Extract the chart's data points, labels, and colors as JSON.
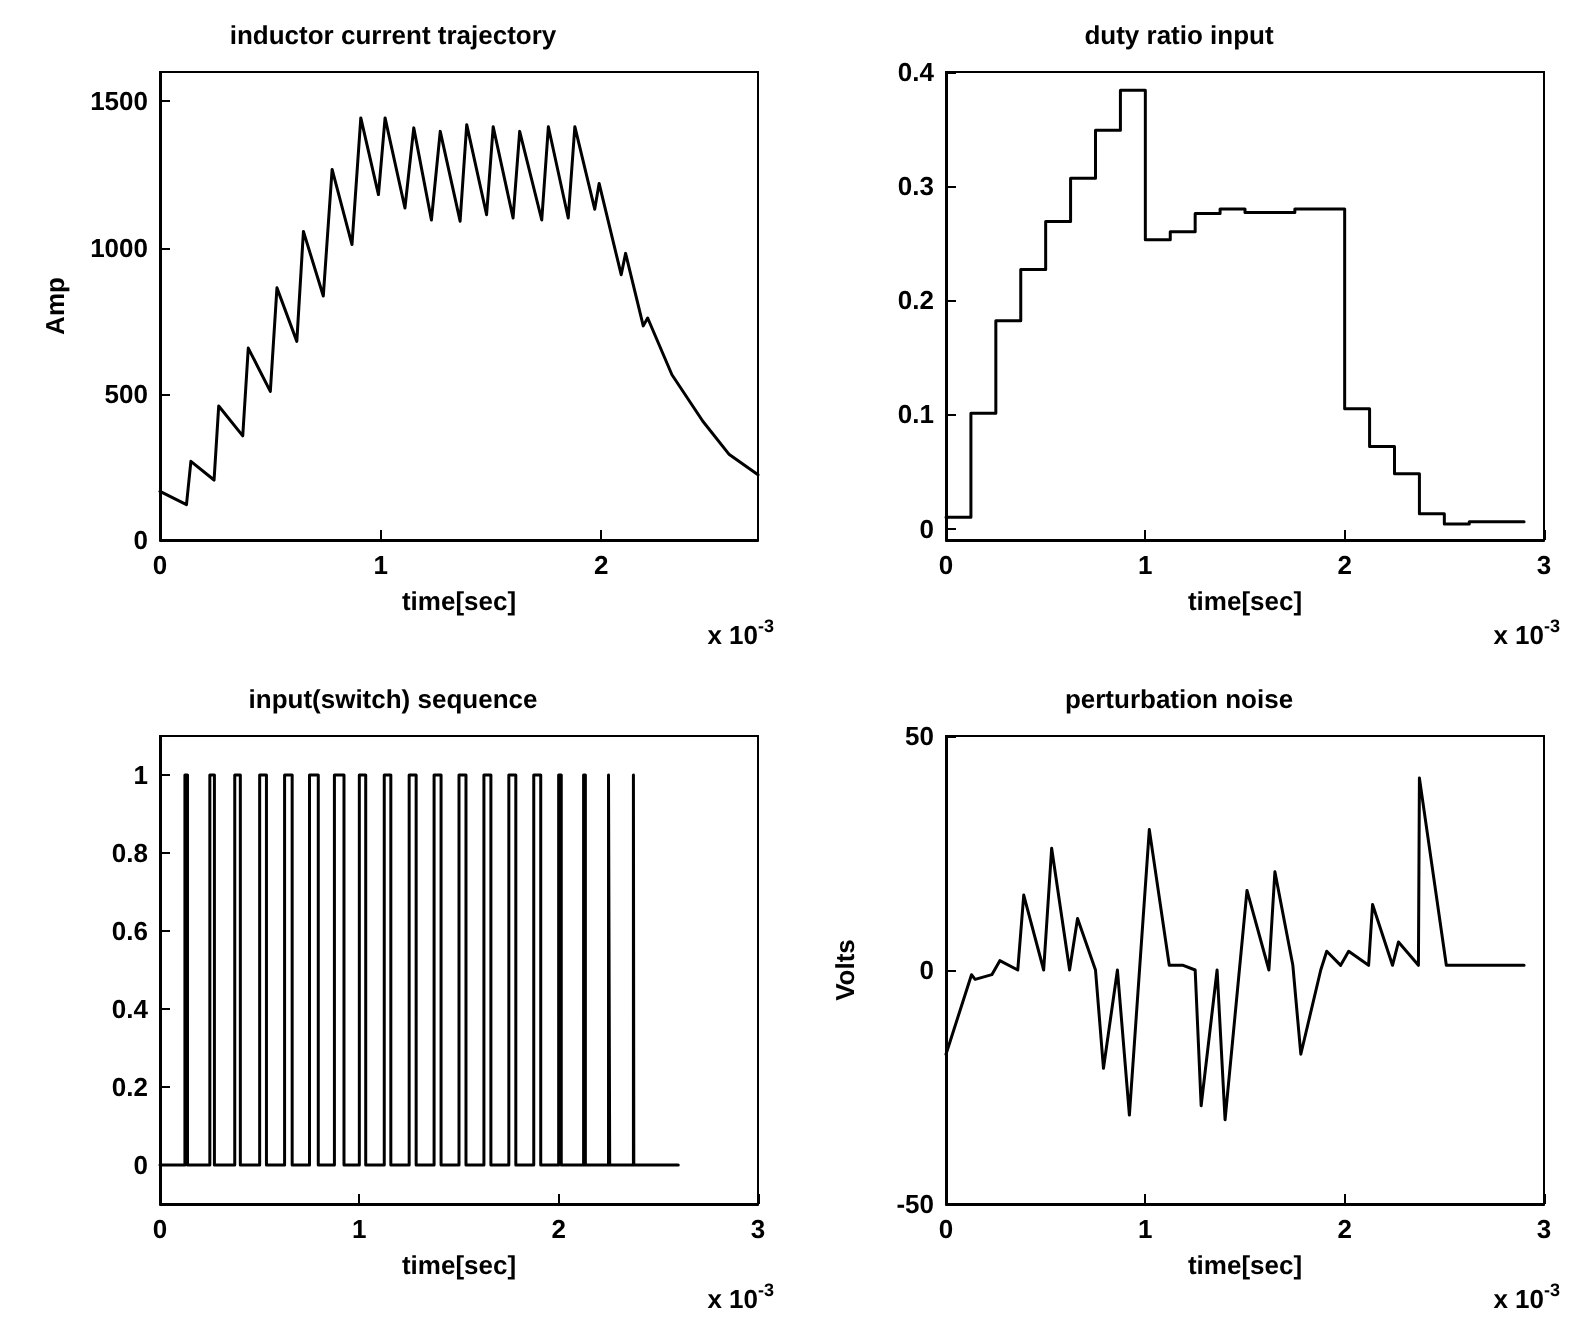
{
  "chart_data": [
    {
      "type": "line",
      "title": "inductor current trajectory",
      "xlabel": "time[sec]",
      "ylabel": "Amp",
      "annotations": [
        "x 10$^{-3}$"
      ],
      "xlim": [
        0,
        2.71
      ],
      "xticks": [
        0,
        1,
        2
      ],
      "ylim": [
        0,
        1600
      ],
      "yticks": [
        0,
        500,
        1000,
        1500
      ],
      "grid": false,
      "series": [
        {
          "color": "#000000",
          "x": [
            0,
            0.12,
            0.14,
            0.245,
            0.266,
            0.375,
            0.4,
            0.5,
            0.53,
            0.62,
            0.65,
            0.74,
            0.78,
            0.87,
            0.91,
            0.99,
            1.02,
            1.11,
            1.15,
            1.23,
            1.27,
            1.36,
            1.39,
            1.48,
            1.51,
            1.6,
            1.63,
            1.73,
            1.76,
            1.85,
            1.88,
            1.97,
            1.99,
            2.09,
            2.11,
            2.19,
            2.21,
            2.32,
            2.46,
            2.58,
            2.71
          ],
          "values": [
            166,
            121,
            269,
            205,
            458,
            356,
            656,
            508,
            862,
            679,
            1055,
            834,
            1267,
            1010,
            1443,
            1181,
            1443,
            1135,
            1409,
            1094,
            1397,
            1090,
            1420,
            1112,
            1413,
            1101,
            1397,
            1094,
            1413,
            1101,
            1413,
            1131,
            1219,
            907,
            980,
            732,
            759,
            565,
            406,
            292,
            223
          ]
        }
      ]
    },
    {
      "type": "step",
      "title": "duty ratio input",
      "xlabel": "time[sec]",
      "annotations": [
        "x 10$^{-3}$"
      ],
      "xlim": [
        0,
        3
      ],
      "xticks": [
        0,
        1,
        2,
        3
      ],
      "ylim": [
        -0.01,
        0.4
      ],
      "yticks": [
        0,
        0.1,
        0.2,
        0.3,
        0.4
      ],
      "grid": false,
      "series": [
        {
          "color": "#000000",
          "x": [
            0,
            0.125,
            0.25,
            0.375,
            0.5,
            0.625,
            0.75,
            0.875,
            1,
            1.125,
            1.25,
            1.375,
            1.5,
            1.625,
            1.75,
            1.875,
            2,
            2.125,
            2.25,
            2.375,
            2.5,
            2.625,
            2.9
          ],
          "values": [
            0.01,
            0.101,
            0.182,
            0.227,
            0.269,
            0.307,
            0.349,
            0.384,
            0.253,
            0.26,
            0.276,
            0.28,
            0.277,
            0.277,
            0.28,
            0.28,
            0.105,
            0.072,
            0.048,
            0.013,
            0.004,
            0.006,
            0.006
          ]
        }
      ]
    },
    {
      "type": "line",
      "title": "input(switch) sequence",
      "xlabel": "time[sec]",
      "annotations": [
        "x 10$^{-3}$"
      ],
      "xlim": [
        0,
        3
      ],
      "xticks": [
        0,
        1,
        2,
        3
      ],
      "ylim": [
        -0.1,
        1.1
      ],
      "yticks": [
        0,
        0.2,
        0.4,
        0.6,
        0.8,
        1
      ],
      "grid": false,
      "series": [
        {
          "color": "#000000",
          "x": [
            0,
            0.125,
            0.125,
            0.138,
            0.138,
            0.25,
            0.25,
            0.273,
            0.273,
            0.375,
            0.375,
            0.403,
            0.403,
            0.5,
            0.5,
            0.534,
            0.534,
            0.625,
            0.625,
            0.663,
            0.663,
            0.75,
            0.75,
            0.794,
            0.794,
            0.875,
            0.875,
            0.923,
            0.923,
            1,
            1,
            1.032,
            1.032,
            1.125,
            1.125,
            1.158,
            1.158,
            1.25,
            1.25,
            1.285,
            1.285,
            1.375,
            1.375,
            1.41,
            1.41,
            1.5,
            1.5,
            1.535,
            1.535,
            1.625,
            1.625,
            1.66,
            1.66,
            1.75,
            1.75,
            1.785,
            1.785,
            1.875,
            1.875,
            1.91,
            1.91,
            2,
            2,
            2.013,
            2.013,
            2.125,
            2.125,
            2.134,
            2.134,
            2.25,
            2.25,
            2.256,
            2.256,
            2.375,
            2.375,
            2.377,
            2.377,
            2.6
          ],
          "values": [
            0,
            0,
            1,
            1,
            0,
            0,
            1,
            1,
            0,
            0,
            1,
            1,
            0,
            0,
            1,
            1,
            0,
            0,
            1,
            1,
            0,
            0,
            1,
            1,
            0,
            0,
            1,
            1,
            0,
            0,
            1,
            1,
            0,
            0,
            1,
            1,
            0,
            0,
            1,
            1,
            0,
            0,
            1,
            1,
            0,
            0,
            1,
            1,
            0,
            0,
            1,
            1,
            0,
            0,
            1,
            1,
            0,
            0,
            1,
            1,
            0,
            0,
            1,
            1,
            0,
            0,
            1,
            1,
            0,
            0,
            1,
            1,
            0,
            0,
            1,
            1,
            0,
            0
          ]
        }
      ]
    },
    {
      "type": "line",
      "title": "perturbation noise",
      "xlabel": "time[sec]",
      "ylabel": "Volts",
      "annotations": [
        "x 10$^{-3}$"
      ],
      "xlim": [
        0,
        3
      ],
      "xticks": [
        0,
        1,
        2,
        3
      ],
      "ylim": [
        -50,
        50
      ],
      "yticks": [
        -50,
        0,
        50
      ],
      "grid": false,
      "series": [
        {
          "color": "#000000",
          "x": [
            0,
            0.128,
            0.146,
            0.23,
            0.27,
            0.36,
            0.39,
            0.49,
            0.53,
            0.62,
            0.66,
            0.75,
            0.79,
            0.86,
            0.92,
            1.02,
            1.12,
            1.19,
            1.25,
            1.28,
            1.36,
            1.4,
            1.51,
            1.62,
            1.65,
            1.74,
            1.78,
            1.88,
            1.91,
            1.98,
            2.02,
            2.12,
            2.14,
            2.24,
            2.27,
            2.37,
            2.375,
            2.51,
            2.9
          ],
          "values": [
            -18,
            -1,
            -2,
            -1,
            2,
            0,
            16,
            0,
            26,
            0,
            11,
            0,
            -21,
            0,
            -31,
            30,
            1,
            1,
            0,
            -29,
            0,
            -32,
            17,
            0,
            21,
            1,
            -18,
            0,
            4,
            1,
            4,
            1,
            14,
            1,
            6,
            1,
            41,
            1,
            1
          ]
        }
      ]
    }
  ]
}
